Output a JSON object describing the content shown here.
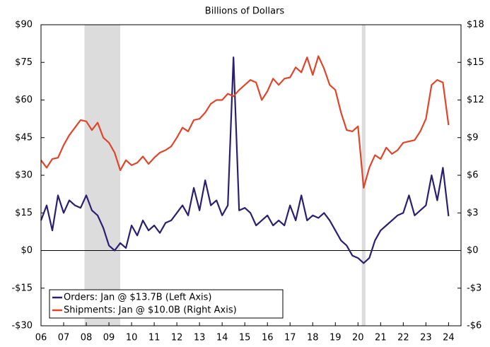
{
  "chart_data": {
    "type": "line",
    "subtitle": "Billions of Dollars",
    "x": [
      2006,
      2006.25,
      2006.5,
      2006.75,
      2007,
      2007.25,
      2007.5,
      2007.75,
      2008,
      2008.25,
      2008.5,
      2008.75,
      2009,
      2009.25,
      2009.5,
      2009.75,
      2010,
      2010.25,
      2010.5,
      2010.75,
      2011,
      2011.25,
      2011.5,
      2011.75,
      2012,
      2012.25,
      2012.5,
      2012.75,
      2013,
      2013.25,
      2013.5,
      2013.75,
      2014,
      2014.25,
      2014.5,
      2014.75,
      2015,
      2015.25,
      2015.5,
      2015.75,
      2016,
      2016.25,
      2016.5,
      2016.75,
      2017,
      2017.25,
      2017.5,
      2017.75,
      2018,
      2018.25,
      2018.5,
      2018.75,
      2019,
      2019.25,
      2019.5,
      2019.75,
      2020,
      2020.25,
      2020.5,
      2020.75,
      2021,
      2021.25,
      2021.5,
      2021.75,
      2022,
      2022.25,
      2022.5,
      2022.75,
      2023,
      2023.25,
      2023.5,
      2023.75,
      2024
    ],
    "series": [
      {
        "name": "Orders: Jan @ $13.7B (Left Axis)",
        "color": "#2b2070",
        "axis": "y",
        "values": [
          12,
          18,
          8,
          22,
          15,
          20,
          18,
          17,
          22,
          16,
          14,
          9,
          2,
          0,
          3,
          1,
          10,
          6,
          12,
          8,
          10,
          7,
          11,
          12,
          15,
          18,
          14,
          25,
          16,
          28,
          18,
          20,
          14,
          18,
          77,
          16,
          17,
          15,
          10,
          12,
          14,
          10,
          12,
          10,
          18,
          12,
          22,
          12,
          14,
          13,
          15,
          12,
          8,
          4,
          2,
          -2,
          -3,
          -5,
          -3,
          4,
          8,
          10,
          12,
          14,
          15,
          22,
          14,
          16,
          18,
          30,
          20,
          33,
          13.7
        ]
      },
      {
        "name": "Shipments: Jan @ $10.0B (Right Axis)",
        "color": "#e0452a",
        "axis": "y2",
        "values": [
          7.2,
          6.6,
          7.3,
          7.4,
          8.4,
          9.2,
          9.8,
          10.4,
          10.3,
          9.6,
          10.2,
          9.0,
          8.6,
          7.8,
          6.4,
          7.2,
          6.8,
          7.0,
          7.5,
          6.9,
          7.4,
          7.8,
          8.0,
          8.3,
          9.0,
          9.8,
          9.5,
          10.4,
          10.5,
          11.0,
          11.7,
          12.0,
          12.0,
          12.5,
          12.3,
          12.8,
          13.2,
          13.6,
          13.4,
          12.0,
          12.7,
          13.7,
          13.2,
          13.7,
          13.8,
          14.6,
          14.2,
          15.4,
          14.0,
          15.5,
          14.5,
          13.2,
          12.8,
          11.0,
          9.6,
          9.5,
          9.9,
          5.0,
          6.6,
          7.6,
          7.3,
          8.2,
          7.7,
          8.0,
          8.6,
          8.7,
          8.8,
          9.5,
          10.5,
          13.2,
          13.6,
          13.4,
          10.0
        ]
      }
    ],
    "shaded_periods": [
      [
        2007.92,
        2009.5
      ],
      [
        2020.17,
        2020.33
      ]
    ],
    "xlim": [
      2006,
      2024.55
    ],
    "xticks": [
      {
        "value": 2006,
        "label": "06"
      },
      {
        "value": 2007,
        "label": "07"
      },
      {
        "value": 2008,
        "label": "08"
      },
      {
        "value": 2009,
        "label": "09"
      },
      {
        "value": 2010,
        "label": "10"
      },
      {
        "value": 2011,
        "label": "11"
      },
      {
        "value": 2012,
        "label": "12"
      },
      {
        "value": 2013,
        "label": "13"
      },
      {
        "value": 2014,
        "label": "14"
      },
      {
        "value": 2015,
        "label": "15"
      },
      {
        "value": 2016,
        "label": "16"
      },
      {
        "value": 2017,
        "label": "17"
      },
      {
        "value": 2018,
        "label": "18"
      },
      {
        "value": 2019,
        "label": "19"
      },
      {
        "value": 2020,
        "label": "20"
      },
      {
        "value": 2021,
        "label": "21"
      },
      {
        "value": 2022,
        "label": "22"
      },
      {
        "value": 2023,
        "label": "23"
      },
      {
        "value": 2024,
        "label": "24"
      }
    ],
    "ylim": [
      -30,
      90
    ],
    "yticks": [
      {
        "value": -30,
        "label": "-$30"
      },
      {
        "value": -15,
        "label": "-$15"
      },
      {
        "value": 0,
        "label": "$0"
      },
      {
        "value": 15,
        "label": "$15"
      },
      {
        "value": 30,
        "label": "$30"
      },
      {
        "value": 45,
        "label": "$45"
      },
      {
        "value": 60,
        "label": "$60"
      },
      {
        "value": 75,
        "label": "$75"
      },
      {
        "value": 90,
        "label": "$90"
      }
    ],
    "y2lim": [
      -6,
      18
    ],
    "y2ticks": [
      {
        "value": -6,
        "label": "-$6"
      },
      {
        "value": -3,
        "label": "-$3"
      },
      {
        "value": 0,
        "label": "$0"
      },
      {
        "value": 3,
        "label": "$3"
      },
      {
        "value": 6,
        "label": "$6"
      },
      {
        "value": 9,
        "label": "$9"
      },
      {
        "value": 12,
        "label": "$12"
      },
      {
        "value": 15,
        "label": "$15"
      },
      {
        "value": 18,
        "label": "$18"
      }
    ],
    "legend": "lower left"
  }
}
